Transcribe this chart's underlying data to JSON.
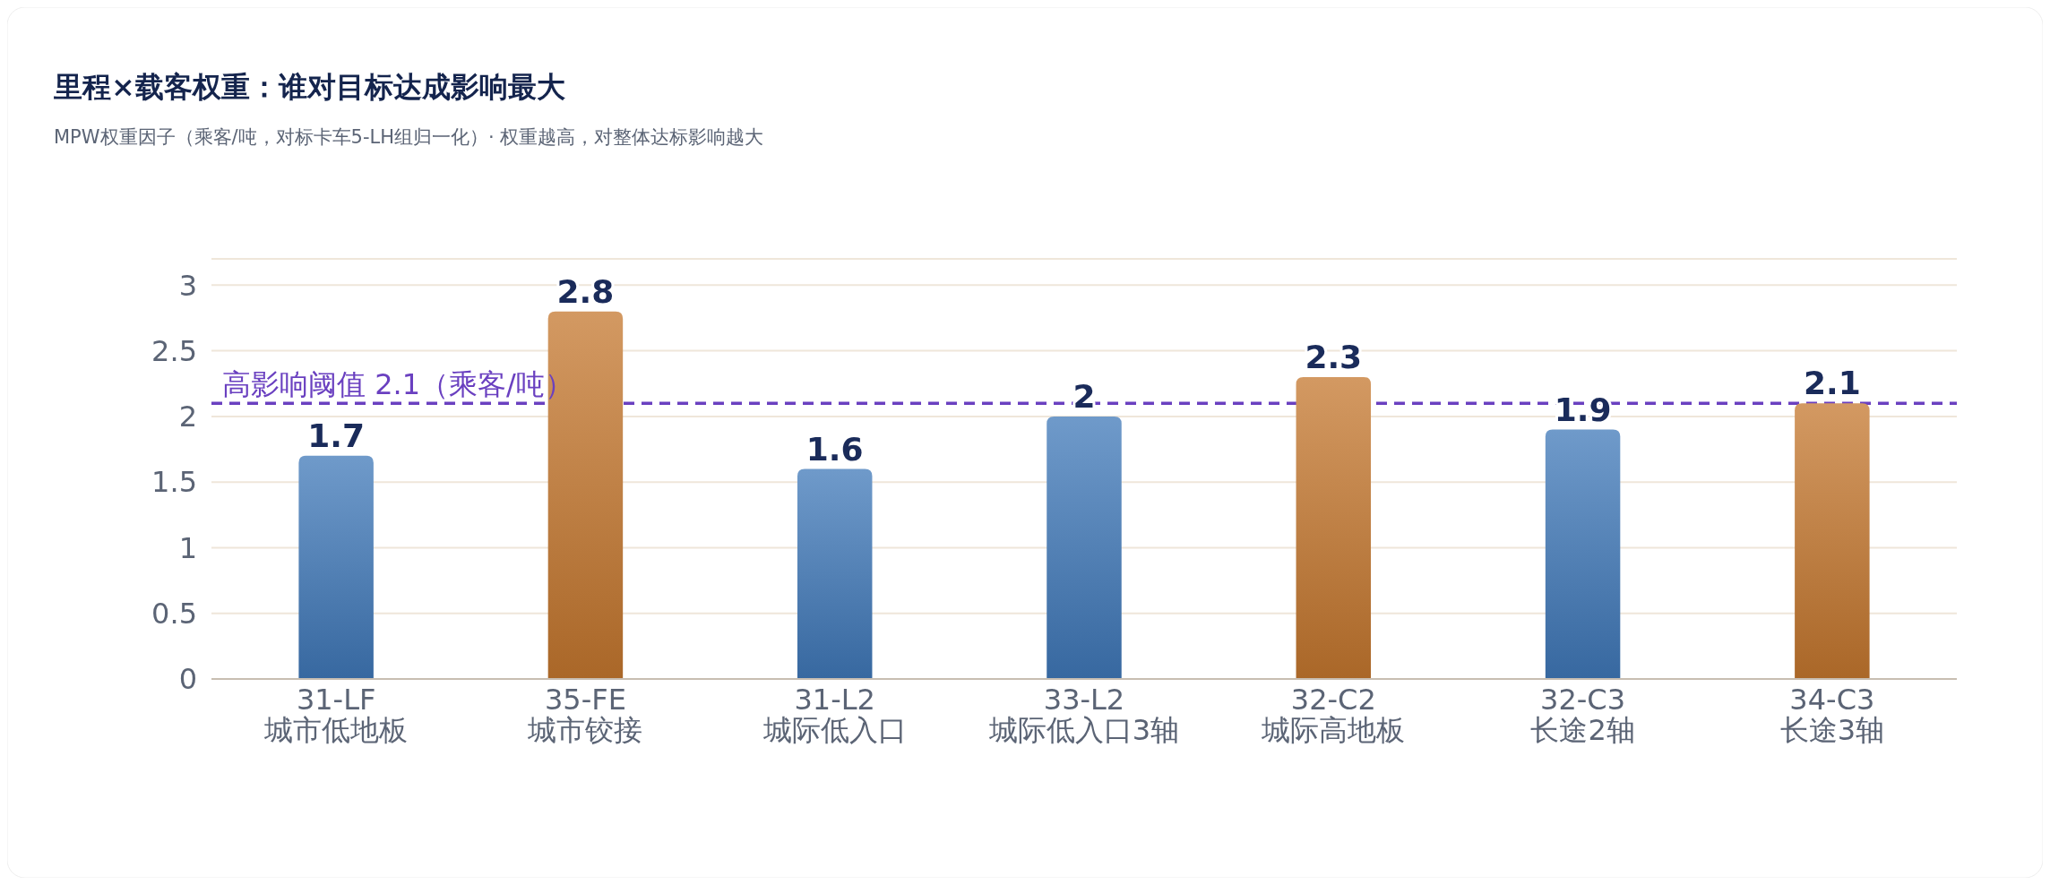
{
  "chart_data": {
    "type": "bar",
    "title": "里程×载客权重：谁对目标达成影响最大",
    "subtitle": "MPW权重因子（乘客/吨，对标卡车5-LH组归一化）· 权重越高，对整体达标影响越大",
    "categories": [
      "31-LF\n城市低地板",
      "35-FE\n城市铰接",
      "31-L2\n城际低入口",
      "33-L2\n城际低入口3轴",
      "32-C2\n城际高地板",
      "32-C3\n长途2轴",
      "34-C3\n长途3轴"
    ],
    "values": [
      1.7,
      2.8,
      1.6,
      2,
      2.3,
      1.9,
      2.1
    ],
    "colors": [
      "#3f78b8",
      "#c4772e",
      "#3f78b8",
      "#3f78b8",
      "#c4772e",
      "#3f78b8",
      "#c4772e"
    ],
    "ylim": [
      0,
      3.2
    ],
    "yticks": [
      0,
      0.5,
      1,
      1.5,
      2,
      2.5,
      3,
      {
        "value": 3.2,
        "label": null
      }
    ],
    "grid": "y",
    "data_labels": true,
    "ref_lines": [
      {
        "axis": "y",
        "value": 2.1,
        "label": "高影响阈值 2.1（乘客/吨）",
        "color": "#6a40c0",
        "line_style": "dashed"
      }
    ]
  }
}
